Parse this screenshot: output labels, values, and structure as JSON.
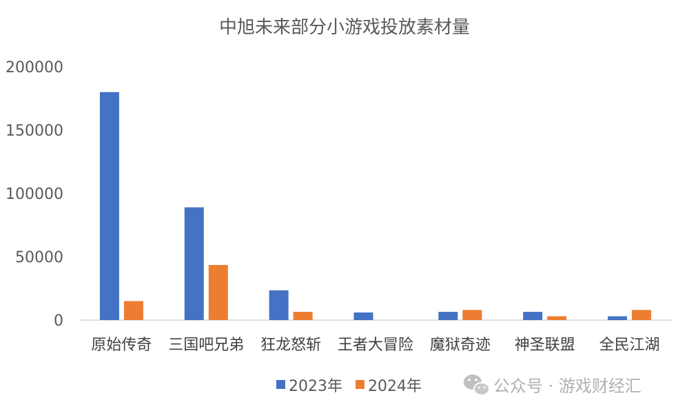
{
  "chart_data": {
    "type": "bar",
    "title": "中旭未来部分小游戏投放素材量",
    "xlabel": "",
    "ylabel": "",
    "ylim": [
      0,
      200000
    ],
    "yticks": [
      0,
      50000,
      100000,
      150000,
      200000
    ],
    "ytick_labels": [
      "0",
      "50000",
      "100000",
      "150000",
      "200000"
    ],
    "grid": false,
    "legend_position": "bottom",
    "categories": [
      "原始传奇",
      "三国吧兄弟",
      "狂龙怒斩",
      "王者大冒险",
      "魔狱奇迹",
      "神圣联盟",
      "全民江湖"
    ],
    "series": [
      {
        "name": "2023年",
        "color": "#4472C4",
        "values": [
          180000,
          89000,
          23500,
          6000,
          6500,
          6500,
          3000
        ]
      },
      {
        "name": "2024年",
        "color": "#ED7D31",
        "values": [
          15000,
          43500,
          6500,
          0,
          8000,
          3000,
          8000
        ]
      }
    ]
  },
  "watermark": {
    "text": "公众号 · 游戏财经汇",
    "icon": "wechat-icon"
  }
}
